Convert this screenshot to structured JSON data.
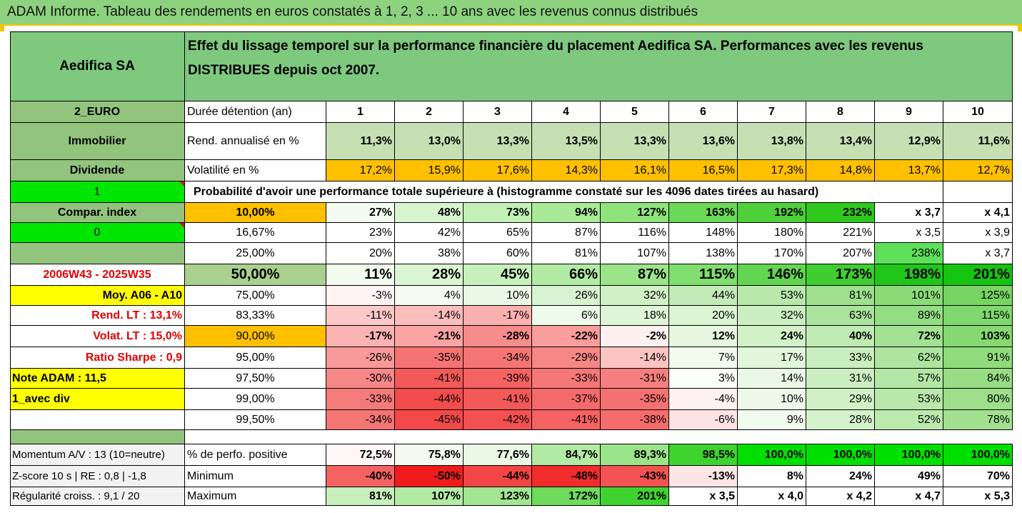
{
  "title": "ADAM Informe. Tableau des rendements en euros constatés à 1, 2, 3 ... 10 ans avec les revenus connus distribués",
  "sidebar": {
    "fund_name": "Aedifica SA",
    "code": "2_EURO",
    "category": "Immobilier",
    "dividend": "Dividende",
    "field_1": "1",
    "compar_index": "Compar. index",
    "field_0": "0",
    "period": "2006W43 - 2025W35",
    "moy": "Moy. A06 - A10",
    "rend_lt": "Rend. LT :   13,1%",
    "volat_lt": "Volat. LT :   15,0%",
    "ratio_sharpe": "Ratio Sharpe :    0,9",
    "note_adam": "Note ADAM : 11,5",
    "avec_div": "1_avec div",
    "momentum": "Momentum A/V : 13 (10=neutre)",
    "zscore": "Z-score 10 s  | RE : 0,8 | -1,8",
    "regularite": "Régularité croiss. : 9,1 / 20"
  },
  "header_text": "Effet du lissage temporel sur la performance financière du placement Aedifica SA. Performances avec les revenus DISTRIBUES depuis oct 2007.",
  "rows": {
    "duree": {
      "label": "Durée détention (an)",
      "values": [
        "1",
        "2",
        "3",
        "4",
        "5",
        "6",
        "7",
        "8",
        "9",
        "10"
      ]
    },
    "rend": {
      "label": "Rend. annualisé en %",
      "values": [
        "11,3%",
        "13,0%",
        "13,3%",
        "13,5%",
        "13,3%",
        "13,6%",
        "13,8%",
        "13,4%",
        "12,9%",
        "11,6%"
      ]
    },
    "vol": {
      "label": "Volatilité en %",
      "values": [
        "17,2%",
        "15,9%",
        "17,6%",
        "14,3%",
        "16,1%",
        "16,5%",
        "17,3%",
        "14,8%",
        "13,7%",
        "12,7%"
      ]
    },
    "proba_title": "Probabilité d'avoir une performance totale supérieure à (histogramme constaté sur les 4096 dates tirées au hasard)",
    "pct": [
      {
        "label": "10,00%",
        "values": [
          "27%",
          "48%",
          "73%",
          "94%",
          "127%",
          "163%",
          "192%",
          "232%",
          "x 3,7",
          "x 4,1"
        ]
      },
      {
        "label": "16,67%",
        "values": [
          "23%",
          "42%",
          "65%",
          "87%",
          "116%",
          "148%",
          "180%",
          "221%",
          "x 3,5",
          "x 3,9"
        ]
      },
      {
        "label": "25,00%",
        "values": [
          "20%",
          "38%",
          "60%",
          "81%",
          "107%",
          "138%",
          "170%",
          "207%",
          "238%",
          "x 3,7"
        ]
      },
      {
        "label": "50,00%",
        "values": [
          "11%",
          "28%",
          "45%",
          "66%",
          "87%",
          "115%",
          "146%",
          "173%",
          "198%",
          "201%"
        ]
      },
      {
        "label": "75,00%",
        "values": [
          "-3%",
          "4%",
          "10%",
          "26%",
          "32%",
          "44%",
          "53%",
          "81%",
          "101%",
          "125%"
        ]
      },
      {
        "label": "83,33%",
        "values": [
          "-11%",
          "-14%",
          "-17%",
          "6%",
          "18%",
          "20%",
          "32%",
          "63%",
          "89%",
          "115%"
        ]
      },
      {
        "label": "90,00%",
        "values": [
          "-17%",
          "-21%",
          "-28%",
          "-22%",
          "-2%",
          "12%",
          "24%",
          "40%",
          "72%",
          "103%"
        ]
      },
      {
        "label": "95,00%",
        "values": [
          "-26%",
          "-35%",
          "-34%",
          "-29%",
          "-14%",
          "7%",
          "17%",
          "33%",
          "62%",
          "91%"
        ]
      },
      {
        "label": "97,50%",
        "values": [
          "-30%",
          "-41%",
          "-39%",
          "-33%",
          "-31%",
          "3%",
          "14%",
          "31%",
          "57%",
          "84%"
        ]
      },
      {
        "label": "99,00%",
        "values": [
          "-33%",
          "-44%",
          "-41%",
          "-37%",
          "-35%",
          "-4%",
          "10%",
          "29%",
          "53%",
          "80%"
        ]
      },
      {
        "label": "99,50%",
        "values": [
          "-34%",
          "-45%",
          "-42%",
          "-41%",
          "-38%",
          "-6%",
          "9%",
          "28%",
          "52%",
          "78%"
        ]
      }
    ],
    "positive": {
      "label": "% de perfo. positive",
      "values": [
        "72,5%",
        "75,8%",
        "77,6%",
        "84,7%",
        "89,3%",
        "98,5%",
        "100,0%",
        "100,0%",
        "100,0%",
        "100,0%"
      ]
    },
    "minimum": {
      "label": "Minimum",
      "values": [
        "-40%",
        "-50%",
        "-44%",
        "-48%",
        "-43%",
        "-13%",
        "8%",
        "24%",
        "49%",
        "70%"
      ]
    },
    "maximum": {
      "label": "Maximum",
      "values": [
        "81%",
        "107%",
        "123%",
        "172%",
        "201%",
        "x 3,5",
        "x 4,0",
        "x 4,2",
        "x 4,7",
        "x 5,3"
      ]
    }
  },
  "colors": {
    "header_green": "#7fc97f",
    "mid_green": "#93c47d",
    "light_green_rend": "#c6e0b4",
    "orange": "#ffc000",
    "bright_green": "#00e600",
    "yellow": "#ffff00",
    "red_text": "#e00000"
  }
}
